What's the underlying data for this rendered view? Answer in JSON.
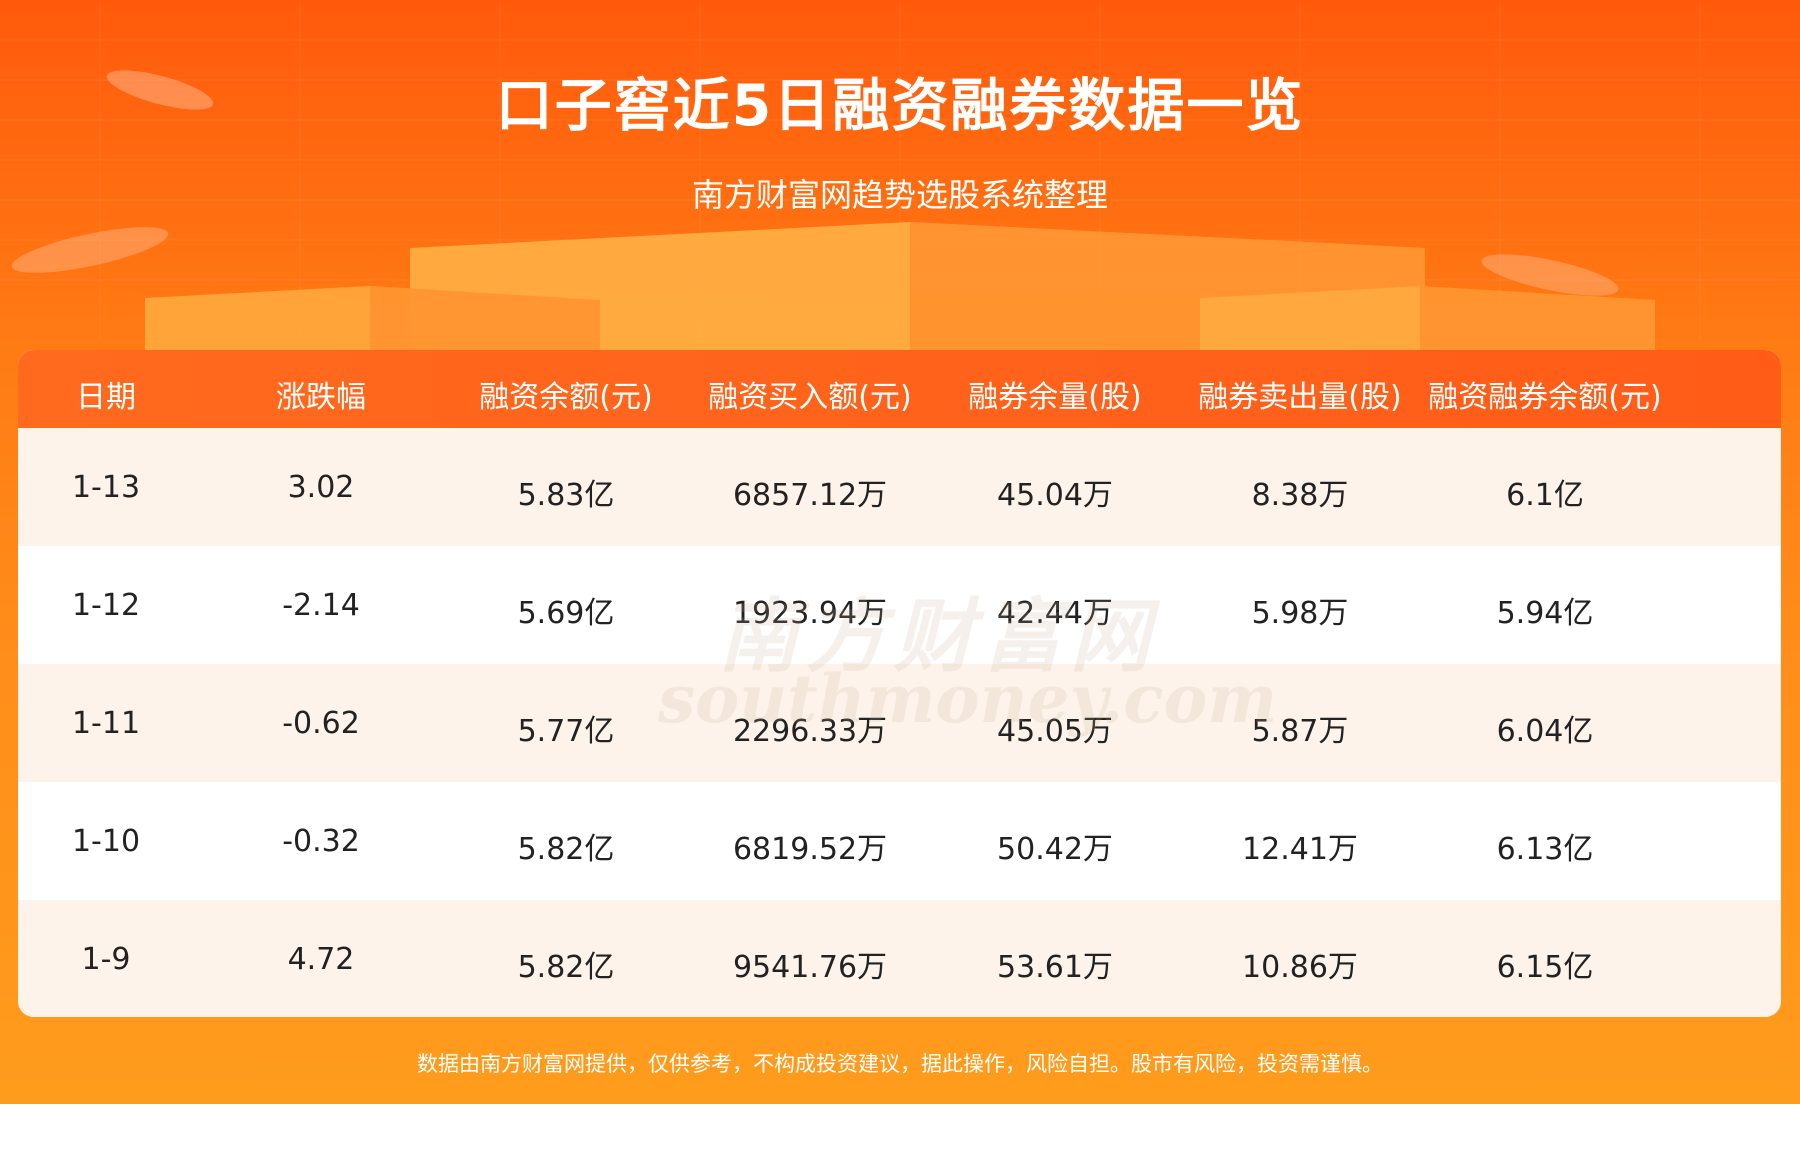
{
  "header": {
    "title": "口子窖近5日融资融券数据一览",
    "subtitle": "南方财富网趋势选股系统整理"
  },
  "table": {
    "columns": [
      "日期",
      "涨跌幅",
      "融资余额(元)",
      "融资买入额(元)",
      "融券余量(股)",
      "融券卖出量(股)",
      "融资融券余额(元)"
    ],
    "rows": [
      [
        "1-13",
        "3.02",
        "5.83亿",
        "6857.12万",
        "45.04万",
        "8.38万",
        "6.1亿"
      ],
      [
        "1-12",
        "-2.14",
        "5.69亿",
        "1923.94万",
        "42.44万",
        "5.98万",
        "5.94亿"
      ],
      [
        "1-11",
        "-0.62",
        "5.77亿",
        "2296.33万",
        "45.05万",
        "5.87万",
        "6.04亿"
      ],
      [
        "1-10",
        "-0.32",
        "5.82亿",
        "6819.52万",
        "50.42万",
        "12.41万",
        "6.13亿"
      ],
      [
        "1-9",
        "4.72",
        "5.82亿",
        "9541.76万",
        "53.61万",
        "10.86万",
        "6.15亿"
      ]
    ]
  },
  "watermark": {
    "brand": "南方财富网",
    "domain": "southmoney.com"
  },
  "footer": "数据由南方财富网提供，仅供参考，不构成投资建议，据此操作，风险自担。股市有风险，投资需谨慎。"
}
